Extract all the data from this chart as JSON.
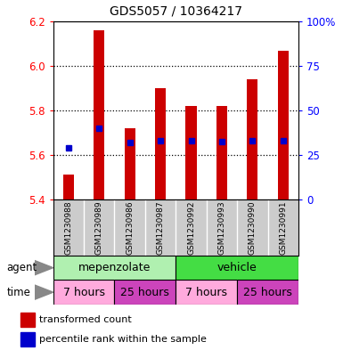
{
  "title": "GDS5057 / 10364217",
  "samples": [
    "GSM1230988",
    "GSM1230989",
    "GSM1230986",
    "GSM1230987",
    "GSM1230992",
    "GSM1230993",
    "GSM1230990",
    "GSM1230991"
  ],
  "bar_tops": [
    5.51,
    6.16,
    5.72,
    5.9,
    5.82,
    5.82,
    5.94,
    6.065
  ],
  "bar_bottom": 5.4,
  "blue_values": [
    5.63,
    5.72,
    5.655,
    5.665,
    5.665,
    5.66,
    5.665,
    5.665
  ],
  "ylim": [
    5.4,
    6.2
  ],
  "left_yticks": [
    5.4,
    5.6,
    5.8,
    6.0,
    6.2
  ],
  "right_yticks": [
    0,
    25,
    50,
    75,
    100
  ],
  "right_yticklabels": [
    "0",
    "25",
    "50",
    "75",
    "100%"
  ],
  "dotted_lines": [
    5.6,
    5.8,
    6.0
  ],
  "bar_color": "#cc0000",
  "blue_color": "#0000cc",
  "agent_mep_color": "#b0f0b0",
  "agent_veh_color": "#44dd44",
  "time_light_color": "#ffaadd",
  "time_dark_color": "#cc44bb",
  "time_labels": [
    "7 hours",
    "25 hours",
    "7 hours",
    "25 hours"
  ],
  "legend_red_label": "transformed count",
  "legend_blue_label": "percentile rank within the sample",
  "gsm_bg_color": "#cccccc",
  "bar_width": 0.35
}
